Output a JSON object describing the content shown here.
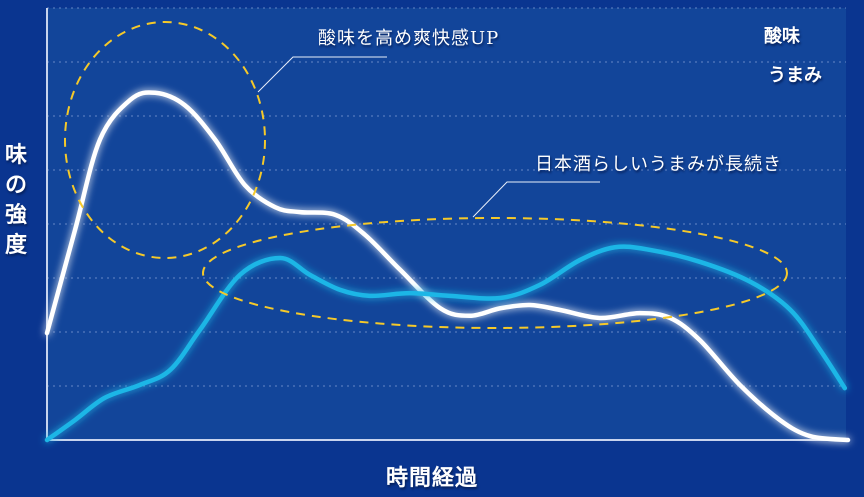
{
  "chart_data": {
    "type": "line",
    "xlabel": "時間経過",
    "ylabel": "味の強度",
    "xlim": [
      0,
      100
    ],
    "ylim": [
      0,
      8
    ],
    "grid": true,
    "legend_placement": "top-right",
    "series": [
      {
        "name": "酸味",
        "color": "#ffffff",
        "x": [
          0,
          3.5,
          6.6,
          10.4,
          13.5,
          17.2,
          21.0,
          24.7,
          28.5,
          31.6,
          36.0,
          39.7,
          44.1,
          49.1,
          52.8,
          56.6,
          60.3,
          64.0,
          69.0,
          74.0,
          77.8,
          81.5,
          86.5,
          91.5,
          95.3,
          100
        ],
        "y": [
          1.98,
          3.89,
          5.56,
          6.3,
          6.43,
          6.2,
          5.56,
          4.72,
          4.31,
          4.22,
          4.17,
          3.8,
          3.15,
          2.44,
          2.3,
          2.44,
          2.5,
          2.41,
          2.26,
          2.35,
          2.26,
          1.85,
          1.02,
          0.37,
          0.07,
          0
        ]
      },
      {
        "name": "うまみ",
        "color": "#1fb6e6",
        "x": [
          0,
          3.5,
          7.2,
          11.6,
          15.4,
          19.1,
          24.1,
          29.1,
          32.8,
          36.6,
          40.3,
          45.3,
          50.3,
          56.6,
          61.5,
          66.5,
          70.9,
          75.3,
          81.5,
          87.8,
          92.8,
          96.5,
          99.6
        ],
        "y": [
          0,
          0.37,
          0.78,
          1.02,
          1.3,
          2.04,
          3.06,
          3.37,
          3.06,
          2.78,
          2.67,
          2.72,
          2.67,
          2.63,
          2.87,
          3.33,
          3.57,
          3.52,
          3.3,
          2.93,
          2.41,
          1.67,
          0.96
        ]
      }
    ],
    "annotations": [
      {
        "text": "酸味を高め爽快感UP"
      },
      {
        "text": "日本酒らしいうまみが長続き"
      }
    ],
    "colors": {
      "background": "#0a3590",
      "plot_background": "#12459a",
      "highlight": "#f5c92a"
    }
  }
}
